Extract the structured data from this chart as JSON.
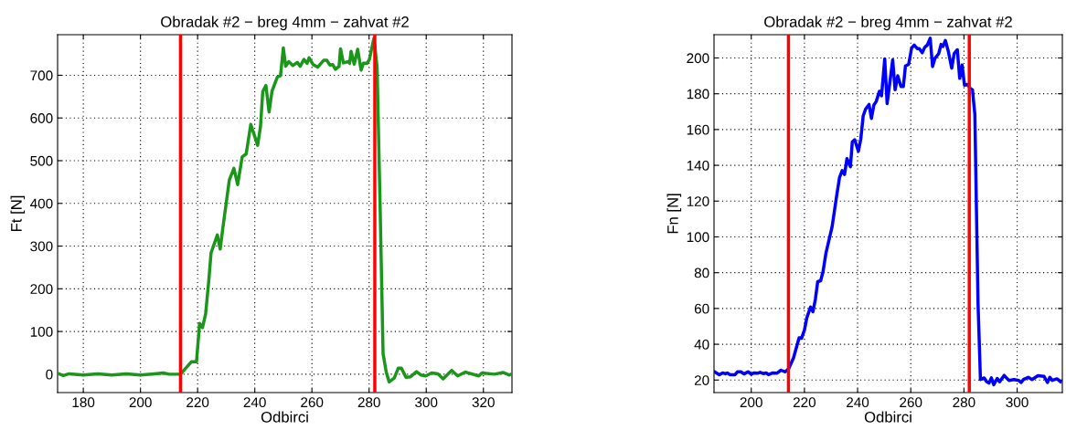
{
  "chart_data": [
    {
      "type": "line",
      "title": "Obradak #2 − breg 4mm − zahvat #2",
      "xlabel": "Odbirci",
      "ylabel": "Ft [N]",
      "xlim": [
        171,
        330
      ],
      "xticks": [
        180,
        200,
        220,
        240,
        260,
        280,
        300,
        320
      ],
      "ylim": [
        -43,
        795
      ],
      "yticks": [
        0,
        100,
        200,
        300,
        400,
        500,
        600,
        700
      ],
      "grid": true,
      "line_style": "solid",
      "marker": "none",
      "series": [
        {
          "color": "#1a961a",
          "x": [
            171,
            173,
            175,
            180,
            185,
            190,
            195,
            200,
            205,
            208,
            210,
            214,
            217.8,
            219.6,
            220.7,
            221.7,
            222.8,
            223.9,
            224.7,
            226.9,
            227.9,
            228.8,
            231.1,
            232.7,
            234,
            235.6,
            237,
            238.6,
            241,
            242,
            242.8,
            243.9,
            245,
            246,
            247.9,
            249,
            250,
            250.8,
            251.9,
            253.3,
            254.9,
            255.9,
            257.2,
            258.3,
            259,
            260.4,
            262,
            264.1,
            265.2,
            266.3,
            267.3,
            268.2,
            269.5,
            270,
            271,
            272.7,
            273.2,
            273.7,
            274.8,
            276,
            277.2,
            278,
            279.3,
            280.1,
            281.7,
            282.8,
            283.8,
            284.9,
            286,
            287,
            288.8,
            290.2,
            291.3,
            292.9,
            294.5,
            296.6,
            298.2,
            299.8,
            301.9,
            304.1,
            305.9,
            308.9,
            311,
            313.7,
            318.4,
            319.5,
            323.8,
            327,
            329.1,
            330
          ],
          "values": [
            2,
            -3,
            1,
            -2,
            1,
            -2,
            1,
            -2,
            1,
            3,
            0,
            0,
            29,
            29,
            119,
            109,
            141,
            219,
            284,
            326,
            293,
            341,
            455,
            482,
            444,
            509,
            516,
            585,
            536,
            580,
            662,
            676,
            614,
            662,
            696,
            699,
            764,
            721,
            732,
            723,
            730,
            721,
            737,
            728,
            741,
            725,
            719,
            735,
            735,
            724,
            725,
            714,
            721,
            762,
            729,
            732,
            728,
            756,
            726,
            761,
            712,
            728,
            728,
            737,
            787,
            719,
            412,
            48,
            5,
            -18,
            -9,
            14,
            14,
            -7,
            -6,
            6,
            -2,
            -4,
            3,
            1,
            -11,
            9,
            -4,
            5,
            -4,
            3,
            0,
            4,
            -2,
            1
          ]
        }
      ],
      "ref_lines": [
        {
          "axis": "x",
          "value": 214,
          "color": "#ff0000"
        },
        {
          "axis": "x",
          "value": 282,
          "color": "#ff0000"
        }
      ]
    },
    {
      "type": "line",
      "title": "Obradak #2 − breg 4mm − zahvat #2",
      "xlabel": "Odbirci",
      "ylabel": "Fn [N]",
      "xlim": [
        186,
        317
      ],
      "xticks": [
        200,
        220,
        240,
        260,
        280,
        300
      ],
      "ylim": [
        13,
        213
      ],
      "yticks": [
        20,
        40,
        60,
        80,
        100,
        120,
        140,
        160,
        180,
        200
      ],
      "grid": true,
      "line_style": "solid",
      "marker": "none",
      "series": [
        {
          "color": "#0000ff",
          "x": [
            186.2,
            188,
            189.2,
            190.3,
            191,
            192,
            193.9,
            194.8,
            196.1,
            197.3,
            198.8,
            200,
            201.1,
            202.4,
            203.3,
            204.5,
            205.6,
            206.5,
            208.1,
            209.6,
            211.2,
            212.8,
            214.1,
            215.9,
            218,
            218.9,
            220,
            220.9,
            222.3,
            223.2,
            224.1,
            225,
            226.1,
            227,
            228.1,
            230.4,
            232.2,
            233.2,
            234.2,
            235.1,
            236,
            237.3,
            238,
            238.9,
            240.3,
            241.2,
            242.1,
            243,
            244.3,
            245.2,
            246.1,
            247,
            248.2,
            249,
            250.2,
            251.1,
            252,
            253.2,
            254.1,
            255.1,
            256.3,
            257.2,
            258,
            259.2,
            260.3,
            261.3,
            262.5,
            263.2,
            264.3,
            265.2,
            266.2,
            267.3,
            268.2,
            269.1,
            270.5,
            271.4,
            272.1,
            273,
            274.1,
            275.4,
            276.3,
            277.5,
            278.4,
            279.3,
            280.2,
            281.3,
            282.3,
            283.2,
            284.1,
            284.9,
            285.3,
            286.2,
            287.6,
            288.5,
            289.4,
            290.3,
            291.2,
            292.5,
            293.4,
            295.1,
            296.9,
            298.8,
            300.6,
            301.5,
            302.4,
            304.2,
            305.6,
            307.8,
            310.1,
            311.4,
            312.3,
            313.2,
            315,
            316.3
          ],
          "values": [
            24.6,
            23,
            24,
            23.5,
            24,
            23,
            23,
            24.6,
            24.6,
            23.4,
            24.6,
            23.3,
            24,
            23.8,
            24.3,
            23.6,
            24,
            23,
            24,
            23.8,
            25.5,
            24.6,
            26.4,
            32.4,
            43.6,
            43.3,
            47.9,
            54.8,
            60.8,
            58.2,
            65,
            75,
            75.5,
            80.6,
            91,
            105.6,
            123.7,
            133.2,
            137.1,
            134.9,
            143.8,
            139.2,
            153,
            154.3,
            147.8,
            154.7,
            167.6,
            171.4,
            174,
            166.2,
            173.6,
            175.7,
            181.4,
            178.8,
            199.5,
            174.5,
            184.8,
            199,
            182.2,
            190,
            184,
            184,
            195.5,
            196.4,
            205.5,
            207.2,
            205.2,
            205.2,
            202.9,
            205.8,
            207.2,
            211,
            195.2,
            199.8,
            202.4,
            207.6,
            206.4,
            209.8,
            203.8,
            194.3,
            202.4,
            204.6,
            188.6,
            196,
            184.8,
            185.2,
            183.1,
            182.2,
            168.5,
            97,
            62.5,
            20.3,
            21.2,
            19.1,
            18.3,
            21.2,
            17.4,
            20.9,
            19,
            22.6,
            19.8,
            20.3,
            19.8,
            18.6,
            20.3,
            21.5,
            20.3,
            22.4,
            22.1,
            18.6,
            21.5,
            19.8,
            20.7,
            19.1
          ]
        }
      ],
      "ref_lines": [
        {
          "axis": "x",
          "value": 214,
          "color": "#ff0000"
        },
        {
          "axis": "x",
          "value": 282,
          "color": "#ff0000"
        }
      ]
    }
  ]
}
